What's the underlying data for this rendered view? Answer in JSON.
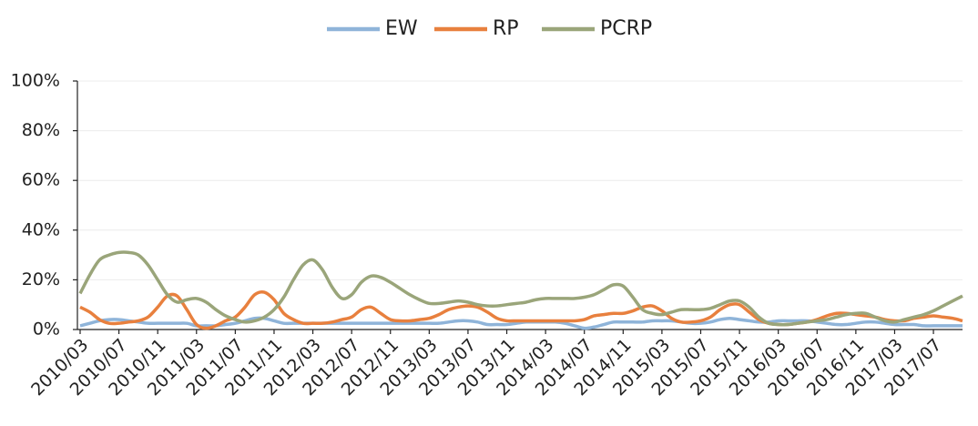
{
  "chart_data": {
    "type": "line",
    "categories": [
      "2010/03",
      null,
      null,
      null,
      "2010/07",
      null,
      null,
      null,
      "2010/11",
      null,
      null,
      null,
      "2011/03",
      null,
      null,
      null,
      "2011/07",
      null,
      null,
      null,
      "2011/11",
      null,
      null,
      null,
      "2012/03",
      null,
      null,
      null,
      "2012/07",
      null,
      null,
      null,
      "2012/11",
      null,
      null,
      null,
      "2013/03",
      null,
      null,
      null,
      "2013/07",
      null,
      null,
      null,
      "2013/11",
      null,
      null,
      null,
      "2014/03",
      null,
      null,
      null,
      "2014/07",
      null,
      null,
      null,
      "2014/11",
      null,
      null,
      null,
      "2015/03",
      null,
      null,
      null,
      "2015/07",
      null,
      null,
      null,
      "2015/11",
      null,
      null,
      null,
      "2016/03",
      null,
      null,
      null,
      "2016/07",
      null,
      null,
      null,
      "2016/11",
      null,
      null,
      null,
      "2017/03",
      null,
      null,
      null,
      "2017/07",
      null,
      null,
      null
    ],
    "series": [
      {
        "name": "EW",
        "color": "#8fb4d9",
        "values": [
          1.5,
          2.5,
          3.5,
          4,
          4,
          3.5,
          3,
          2.5,
          2.5,
          2.5,
          2.5,
          2.5,
          1.5,
          1.5,
          1.5,
          2,
          2.5,
          3.5,
          4.5,
          4.5,
          3.5,
          2.5,
          2.5,
          2.5,
          2.5,
          2.5,
          2.5,
          2.5,
          2.5,
          2.5,
          2.5,
          2.5,
          2.5,
          2.5,
          2.5,
          2.5,
          2.5,
          2.5,
          3,
          3.5,
          3.5,
          3,
          2,
          2,
          2,
          2.5,
          3,
          3,
          3,
          3,
          2.5,
          1.5,
          0.5,
          1,
          2,
          3,
          3,
          3,
          3,
          3.5,
          3.5,
          3.5,
          3,
          2.5,
          2.5,
          3,
          4,
          4.5,
          4,
          3.5,
          3,
          3,
          3.5,
          3.5,
          3.5,
          3.5,
          3,
          2.5,
          2,
          2,
          2.5,
          3,
          3,
          2.5,
          2,
          2,
          2,
          1.5,
          1.5,
          1.5,
          1.5,
          1.5
        ]
      },
      {
        "name": "RP",
        "color": "#e8803e",
        "values": [
          9,
          7,
          4,
          2.5,
          2.5,
          3,
          3.5,
          5,
          9,
          13.5,
          13.5,
          8,
          2,
          0.5,
          1.5,
          3.5,
          5,
          9,
          14,
          15,
          12,
          6.5,
          4,
          2.5,
          2.5,
          2.5,
          3,
          4,
          5,
          8,
          9,
          6.5,
          4,
          3.5,
          3.5,
          4,
          4.5,
          6,
          8,
          9,
          9.5,
          9,
          7,
          4.5,
          3.5,
          3.5,
          3.5,
          3.5,
          3.5,
          3.5,
          3.5,
          3.5,
          4,
          5.5,
          6,
          6.5,
          6.5,
          7.5,
          9,
          9.5,
          7.5,
          4.5,
          3,
          3,
          3.5,
          5,
          8,
          10,
          10,
          7,
          4,
          2.5,
          2,
          2,
          2.5,
          3,
          4,
          5.5,
          6.5,
          6.5,
          6,
          5.5,
          5,
          4,
          3.5,
          3.5,
          4.5,
          5,
          5.5,
          5,
          4.5,
          3.5
        ]
      },
      {
        "name": "PCRP",
        "color": "#9aa57a",
        "values": [
          14.5,
          22,
          28,
          30,
          31,
          31,
          30,
          26,
          20,
          14,
          11,
          12,
          12.5,
          11,
          8,
          5.5,
          4,
          3,
          3.5,
          5,
          8,
          13,
          20,
          26,
          28,
          24,
          17,
          12.5,
          14,
          19,
          21.5,
          21,
          19,
          16.5,
          14,
          12,
          10.5,
          10.5,
          11,
          11.5,
          11,
          10,
          9.5,
          9.5,
          10,
          10.5,
          11,
          12,
          12.5,
          12.5,
          12.5,
          12.5,
          13,
          14,
          16,
          18,
          17.5,
          13,
          8,
          6.5,
          6,
          7,
          8,
          8,
          8,
          8.5,
          10,
          11.5,
          11.5,
          9,
          5,
          2.5,
          2,
          2,
          2.5,
          3,
          3.5,
          4,
          5,
          6,
          6.5,
          6.5,
          5,
          3.5,
          3,
          4,
          5,
          6,
          7.5,
          9.5,
          11.5,
          13.5
        ]
      }
    ],
    "ylim": [
      0,
      100
    ],
    "yticks": [
      {
        "value": 0,
        "label": "0%"
      },
      {
        "value": 20,
        "label": "20%"
      },
      {
        "value": 40,
        "label": "40%"
      },
      {
        "value": 60,
        "label": "60%"
      },
      {
        "value": 80,
        "label": "80%"
      },
      {
        "value": 100,
        "label": "100%"
      }
    ],
    "grid": true,
    "legend": "top"
  }
}
